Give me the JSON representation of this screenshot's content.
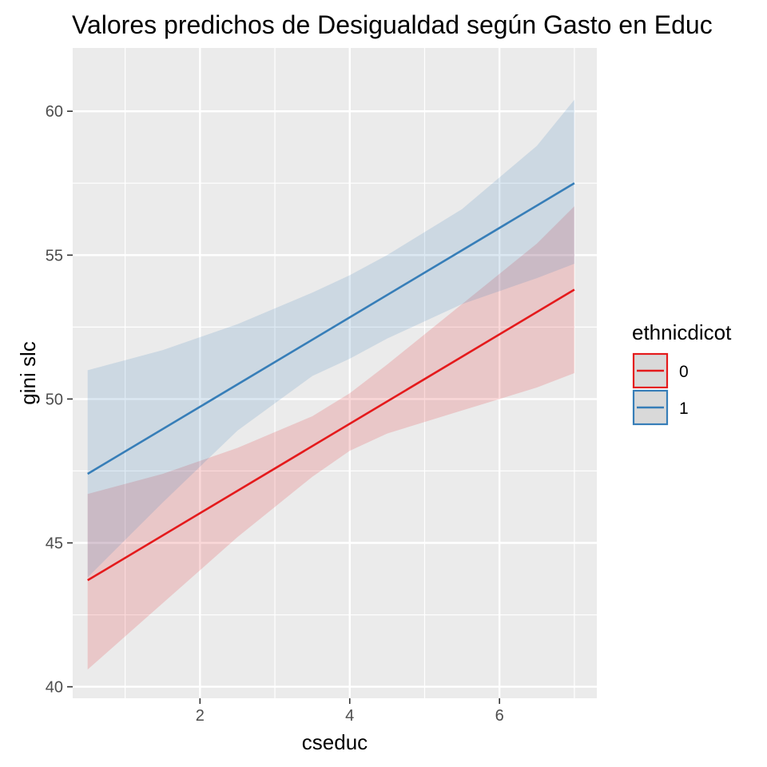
{
  "chart_data": {
    "type": "line",
    "title": "Valores predichos de Desigualdad según Gasto en Educ",
    "xlabel": "cseduc",
    "ylabel": "gini slc",
    "xlim": [
      0.3,
      7.3
    ],
    "ylim": [
      39.6,
      62.2
    ],
    "x_ticks": [
      2,
      4,
      6
    ],
    "x_tick_labels": [
      "2",
      "4",
      "6"
    ],
    "x_minor": [
      1,
      3,
      5,
      7
    ],
    "y_ticks": [
      40,
      45,
      50,
      55,
      60
    ],
    "y_tick_labels": [
      "40",
      "45",
      "50",
      "55",
      "60"
    ],
    "y_minor": [
      42.5,
      47.5,
      52.5,
      57.5
    ],
    "grid": true,
    "legend": {
      "title": "ethnicdicot",
      "position": "right"
    },
    "series": [
      {
        "name": "0",
        "color": "#e41a1c",
        "line": {
          "x": [
            0.5,
            7.0
          ],
          "y": [
            43.7,
            53.8
          ]
        },
        "band": {
          "x": [
            0.5,
            1.5,
            2.5,
            3.5,
            4.0,
            4.5,
            5.5,
            6.5,
            7.0
          ],
          "lower": [
            40.6,
            42.9,
            45.2,
            47.3,
            48.2,
            48.8,
            49.6,
            50.4,
            50.9
          ],
          "upper": [
            46.7,
            47.4,
            48.3,
            49.4,
            50.2,
            51.2,
            53.3,
            55.4,
            56.7
          ]
        }
      },
      {
        "name": "1",
        "color": "#377eb8",
        "line": {
          "x": [
            0.5,
            7.0
          ],
          "y": [
            47.4,
            57.5
          ]
        },
        "band": {
          "x": [
            0.5,
            1.5,
            2.5,
            3.5,
            4.0,
            4.5,
            5.5,
            6.5,
            7.0
          ],
          "lower": [
            43.8,
            46.4,
            48.9,
            50.8,
            51.4,
            52.1,
            53.3,
            54.2,
            54.7
          ],
          "upper": [
            51.0,
            51.7,
            52.6,
            53.7,
            54.3,
            55.0,
            56.6,
            58.8,
            60.4
          ]
        }
      }
    ]
  }
}
